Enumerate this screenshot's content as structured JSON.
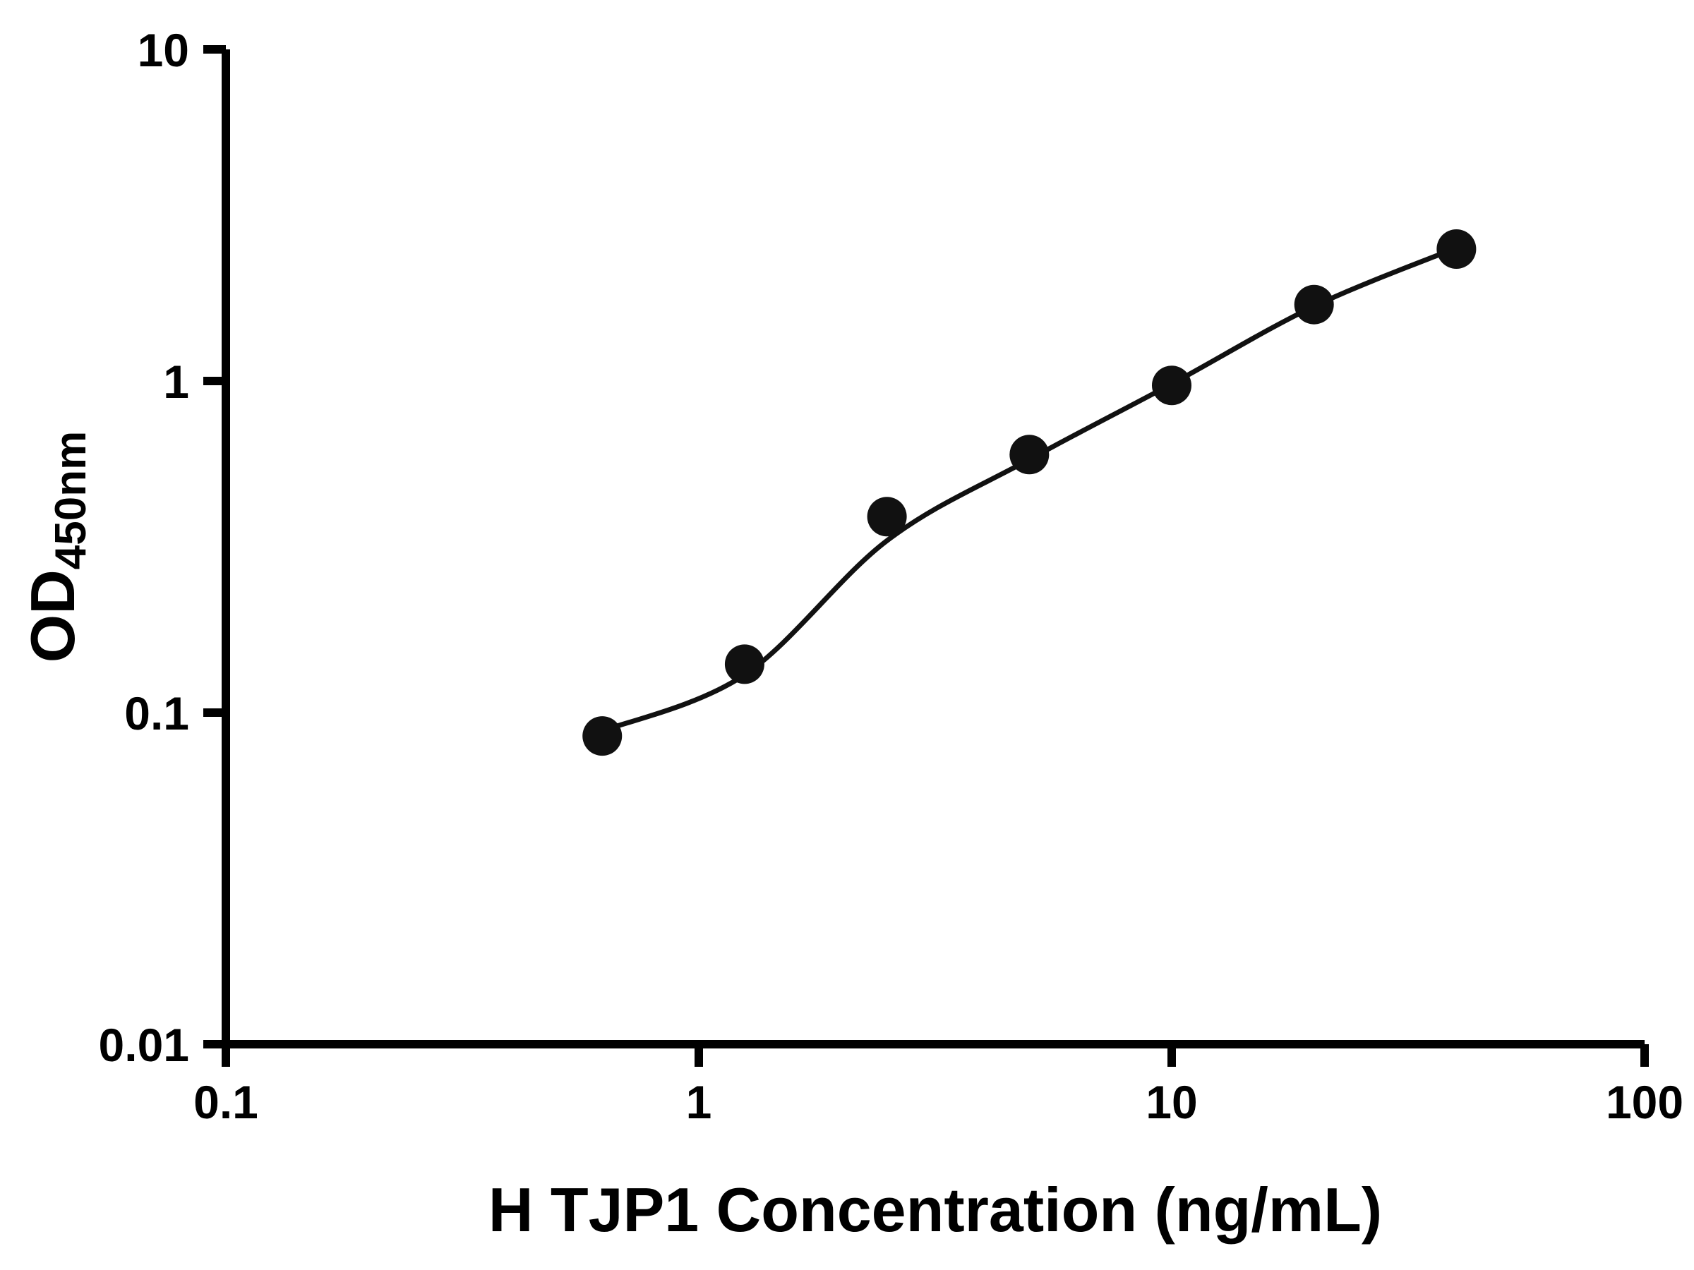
{
  "page": {
    "background_color": "#ffffff"
  },
  "chart_data": {
    "type": "scatter",
    "title": "",
    "xlabel": "H TJP1 Concentration (ng/mL)",
    "ylabel_main": "OD",
    "ylabel_sub": "450nm",
    "x_scale": "log",
    "y_scale": "log",
    "xlim": [
      0.1,
      100
    ],
    "ylim": [
      0.01,
      10
    ],
    "grid": false,
    "legend": "none",
    "axis_color": "#000000",
    "marker_color": "#111111",
    "line_color": "#111111",
    "x": [
      0.625,
      1.25,
      2.5,
      5,
      10,
      20,
      40
    ],
    "y": [
      0.085,
      0.14,
      0.39,
      0.6,
      0.97,
      1.7,
      2.5
    ],
    "fit_curve_x": [
      0.625,
      1.25,
      2.5,
      5,
      10,
      20,
      40
    ],
    "fit_curve_y": [
      0.088,
      0.13,
      0.33,
      0.58,
      0.98,
      1.68,
      2.52
    ],
    "x_ticks": [
      {
        "value": 0.1,
        "label": "0.1"
      },
      {
        "value": 1,
        "label": "1"
      },
      {
        "value": 10,
        "label": "10"
      },
      {
        "value": 100,
        "label": "100"
      }
    ],
    "y_ticks": [
      {
        "value": 0.01,
        "label": "0.01"
      },
      {
        "value": 0.1,
        "label": "0.1"
      },
      {
        "value": 1,
        "label": "1"
      },
      {
        "value": 10,
        "label": "10"
      }
    ]
  }
}
